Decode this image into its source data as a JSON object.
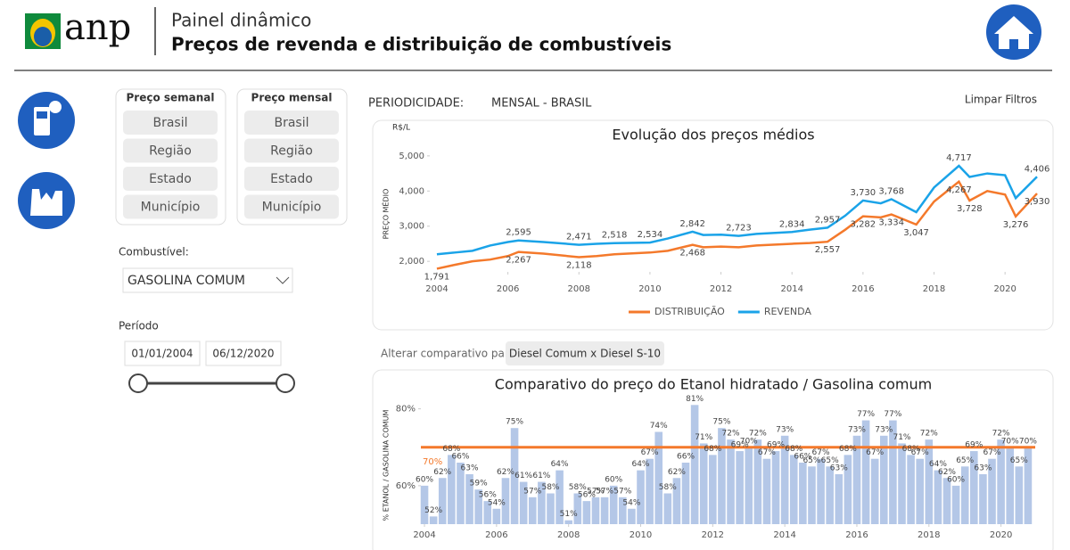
{
  "header": {
    "logo": "anp",
    "title": "Painel dinâmico",
    "subtitle": "Preços de revenda e distribuição de combustíveis"
  },
  "filters": {
    "weekly": {
      "title": "Preço semanal",
      "options": [
        "Brasil",
        "Região",
        "Estado",
        "Município"
      ]
    },
    "monthly": {
      "title": "Preço mensal",
      "options": [
        "Brasil",
        "Região",
        "Estado",
        "Município"
      ]
    },
    "fuel": {
      "label": "Combustível:",
      "value": "GASOLINA COMUM"
    },
    "period": {
      "label": "Período",
      "start": "01/01/2004",
      "end": "06/12/2020"
    }
  },
  "periodicity": {
    "label": "PERIODICIDADE:",
    "value": "MENSAL - BRASIL"
  },
  "clear_filters": "Limpar Filtros",
  "comparison": {
    "label": "Alterar comparativo para:",
    "button": "Diesel Comum x Diesel S-10"
  },
  "chart_data": [
    {
      "type": "line",
      "title": "Evolução dos preços médios",
      "unit_label": "R$/L",
      "y_label": "PREÇO MÉDIO",
      "x": [
        2004,
        2004.5,
        2005,
        2005.5,
        2006,
        2006.3,
        2007,
        2008,
        2008.5,
        2009,
        2010,
        2010.5,
        2011.2,
        2011.5,
        2012,
        2012.5,
        2013,
        2014,
        2014.5,
        2015,
        2015.5,
        2016,
        2016.5,
        2016.8,
        2017.5,
        2018,
        2018.7,
        2019,
        2019.5,
        2020,
        2020.3,
        2020.9
      ],
      "xlim": [
        2003.8,
        2020.95
      ],
      "xticks": [
        2004,
        2006,
        2008,
        2010,
        2012,
        2014,
        2016,
        2018,
        2020
      ],
      "ylim": [
        1700,
        5250
      ],
      "yticks": [
        {
          "value": 2000,
          "label": "2,000"
        },
        {
          "value": 3000,
          "label": "3,000"
        },
        {
          "value": 4000,
          "label": "4,000"
        },
        {
          "value": 5000,
          "label": "5,000"
        }
      ],
      "legend": "bottom",
      "series": [
        {
          "name": "DISTRIBUIÇÃO",
          "color": "#f4792b",
          "values": [
            1791,
            1900,
            2000,
            2050,
            2150,
            2267,
            2220,
            2118,
            2150,
            2200,
            2250,
            2300,
            2468,
            2400,
            2420,
            2400,
            2450,
            2500,
            2520,
            2557,
            2900,
            3282,
            3250,
            3334,
            3047,
            3700,
            4267,
            3728,
            4000,
            3900,
            3276,
            3930
          ],
          "value_labels": [
            "1,791",
            null,
            null,
            null,
            null,
            "2,267",
            null,
            "2,118",
            null,
            null,
            null,
            null,
            "2,468",
            null,
            null,
            null,
            null,
            null,
            null,
            "2,557",
            null,
            "3,282",
            null,
            "3,334",
            "3,047",
            null,
            "4,267",
            "3,728",
            null,
            null,
            "3,276",
            "3,930"
          ]
        },
        {
          "name": "REVENDA",
          "color": "#1aa3e8",
          "values": [
            2200,
            2250,
            2300,
            2450,
            2550,
            2595,
            2550,
            2471,
            2500,
            2518,
            2534,
            2650,
            2842,
            2750,
            2760,
            2723,
            2780,
            2834,
            2900,
            2957,
            3300,
            3730,
            3650,
            3768,
            3400,
            4100,
            4717,
            4400,
            4500,
            4450,
            3800,
            4406
          ],
          "value_labels": [
            null,
            null,
            null,
            null,
            null,
            "2,595",
            null,
            "2,471",
            null,
            "2,518",
            "2,534",
            null,
            "2,842",
            null,
            null,
            "2,723",
            null,
            "2,834",
            null,
            "2,957",
            null,
            "3,730",
            null,
            "3,768",
            null,
            null,
            "4,717",
            null,
            null,
            null,
            null,
            "4,406"
          ]
        }
      ]
    },
    {
      "type": "bar",
      "title": "Comparativo do preço do Etanol hidratado / Gasolina comum",
      "y_label": "% ETANOL / GASOLINA COMUM",
      "color": "#b4c7e7",
      "x": [
        2004,
        2004.25,
        2004.5,
        2004.75,
        2005,
        2005.25,
        2005.5,
        2005.75,
        2006,
        2006.25,
        2006.5,
        2006.75,
        2007,
        2007.25,
        2007.5,
        2007.75,
        2008,
        2008.25,
        2008.5,
        2008.75,
        2009,
        2009.25,
        2009.5,
        2009.75,
        2010,
        2010.25,
        2010.5,
        2010.75,
        2011,
        2011.25,
        2011.5,
        2011.75,
        2012,
        2012.25,
        2012.5,
        2012.75,
        2013,
        2013.25,
        2013.5,
        2013.75,
        2014,
        2014.25,
        2014.5,
        2014.75,
        2015,
        2015.25,
        2015.5,
        2015.75,
        2016,
        2016.25,
        2016.5,
        2016.75,
        2017,
        2017.25,
        2017.5,
        2017.75,
        2018,
        2018.25,
        2018.5,
        2018.75,
        2019,
        2019.25,
        2019.5,
        2019.75,
        2020,
        2020.25,
        2020.5,
        2020.75
      ],
      "values": [
        60,
        52,
        62,
        68,
        66,
        63,
        59,
        56,
        54,
        62,
        75,
        61,
        57,
        61,
        58,
        64,
        51,
        58,
        56,
        57,
        57,
        60,
        57,
        54,
        64,
        67,
        74,
        58,
        62,
        66,
        81,
        71,
        68,
        75,
        72,
        69,
        70,
        72,
        67,
        69,
        73,
        68,
        66,
        65,
        67,
        65,
        63,
        68,
        73,
        77,
        67,
        73,
        77,
        71,
        68,
        67,
        72,
        64,
        62,
        60,
        65,
        69,
        63,
        67,
        72,
        70,
        65,
        70
      ],
      "value_labels": [
        "60%",
        "52%",
        "62%",
        "68%",
        "66%",
        "63%",
        "59%",
        "56%",
        "54%",
        "62%",
        "75%",
        "61%",
        "57%",
        "61%",
        "58%",
        "64%",
        "51%",
        "58%",
        "56%",
        "57%",
        "57%",
        "60%",
        "57%",
        "54%",
        "64%",
        "67%",
        "74%",
        "58%",
        "62%",
        "66%",
        "81%",
        "71%",
        "68%",
        "75%",
        "72%",
        "69%",
        "70%",
        "72%",
        "67%",
        "69%",
        "73%",
        "68%",
        "66%",
        "65%",
        "67%",
        "65%",
        "63%",
        "68%",
        "73%",
        "77%",
        "67%",
        "73%",
        "77%",
        "71%",
        "68%",
        "67%",
        "72%",
        "64%",
        "62%",
        "60%",
        "65%",
        "69%",
        "63%",
        "67%",
        "72%",
        "70%",
        "65%",
        "70%"
      ],
      "xlim": [
        2003.9,
        2020.95
      ],
      "xticks": [
        2004,
        2006,
        2008,
        2010,
        2012,
        2014,
        2016,
        2018,
        2020
      ],
      "ylim": [
        50,
        82
      ],
      "yticks": [
        {
          "value": 60,
          "label": "60%"
        },
        {
          "value": 80,
          "label": "80%"
        }
      ],
      "threshold": {
        "value": 70,
        "label": "70%",
        "color": "#f4792b"
      }
    }
  ]
}
